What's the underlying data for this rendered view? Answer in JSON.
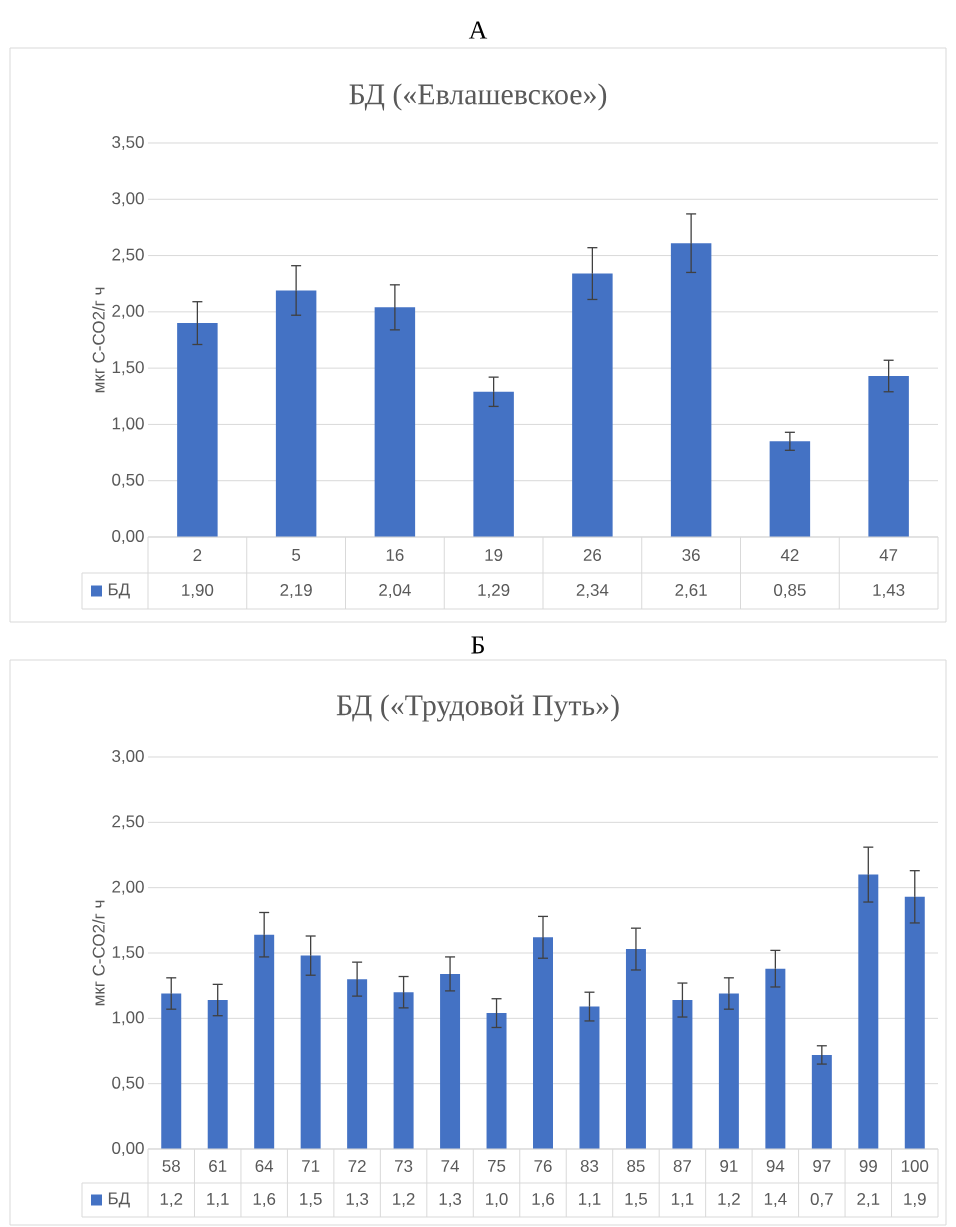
{
  "chart_data": [
    {
      "type": "bar",
      "title": "БД («Евлашевское»)",
      "ylabel": "мкг С-СО2/г ч",
      "annotations": [
        "А"
      ],
      "legend": "bottom",
      "grid": "y",
      "categories": [
        "2",
        "5",
        "16",
        "19",
        "26",
        "36",
        "42",
        "47"
      ],
      "ylim": [
        0,
        3.5
      ],
      "yticks": [
        {
          "value": 0,
          "label": "0,00"
        },
        {
          "value": 0.5,
          "label": "0,50"
        },
        {
          "value": 1,
          "label": "1,00"
        },
        {
          "value": 1.5,
          "label": "1,50"
        },
        {
          "value": 2,
          "label": "2,00"
        },
        {
          "value": 2.5,
          "label": "2,50"
        },
        {
          "value": 3,
          "label": "3,00"
        },
        {
          "value": 3.5,
          "label": "3,50"
        }
      ],
      "series": [
        {
          "name": "БД",
          "color": "#4472c4",
          "values": [
            1.9,
            2.19,
            2.04,
            1.29,
            2.34,
            2.61,
            0.85,
            1.43
          ],
          "errors": [
            0.19,
            0.22,
            0.2,
            0.13,
            0.23,
            0.26,
            0.08,
            0.14
          ],
          "value_labels": [
            "1,90",
            "2,19",
            "2,04",
            "1,29",
            "2,34",
            "2,61",
            "0,85",
            "1,43"
          ]
        }
      ]
    },
    {
      "type": "bar",
      "title": "БД  («Трудовой Путь»)",
      "ylabel": "мкг С-СО2/г ч",
      "annotations": [
        "Б"
      ],
      "legend": "bottom",
      "grid": "y",
      "categories": [
        "58",
        "61",
        "64",
        "71",
        "72",
        "73",
        "74",
        "75",
        "76",
        "83",
        "85",
        "87",
        "91",
        "94",
        "97",
        "99",
        "100"
      ],
      "ylim": [
        0,
        3
      ],
      "yticks": [
        {
          "value": 0,
          "label": "0,00"
        },
        {
          "value": 0.5,
          "label": "0,50"
        },
        {
          "value": 1,
          "label": "1,00"
        },
        {
          "value": 1.5,
          "label": "1,50"
        },
        {
          "value": 2,
          "label": "2,00"
        },
        {
          "value": 2.5,
          "label": "2,50"
        },
        {
          "value": 3,
          "label": "3,00"
        }
      ],
      "series": [
        {
          "name": "БД",
          "color": "#4472c4",
          "values": [
            1.19,
            1.14,
            1.64,
            1.48,
            1.3,
            1.2,
            1.34,
            1.04,
            1.62,
            1.09,
            1.53,
            1.14,
            1.19,
            1.38,
            0.72,
            2.1,
            1.93
          ],
          "errors": [
            0.12,
            0.12,
            0.17,
            0.15,
            0.13,
            0.12,
            0.13,
            0.11,
            0.16,
            0.11,
            0.16,
            0.13,
            0.12,
            0.14,
            0.07,
            0.21,
            0.2
          ],
          "value_labels": [
            "1,2",
            "1,1",
            "1,6",
            "1,5",
            "1,3",
            "1,2",
            "1,3",
            "1,0",
            "1,6",
            "1,1",
            "1,5",
            "1,1",
            "1,2",
            "1,4",
            "0,7",
            "2,1",
            "1,9"
          ]
        }
      ]
    }
  ]
}
